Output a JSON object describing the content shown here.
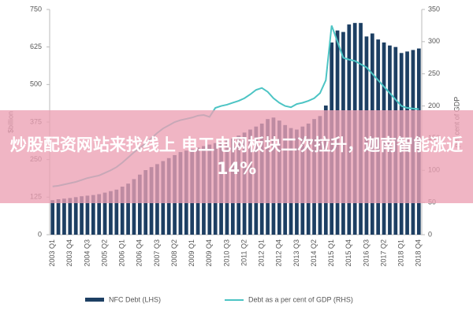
{
  "chart_data": {
    "type": "combo",
    "y_label": "$billion",
    "y2_label": "per cent of GDP",
    "categories": [
      "2003 Q1",
      null,
      null,
      "2003 Q4",
      null,
      null,
      "2004 Q3",
      null,
      null,
      "2005 Q2",
      null,
      null,
      "2006 Q1",
      null,
      null,
      "2006 Q4",
      null,
      null,
      "2007 Q3",
      null,
      null,
      "2008 Q2",
      null,
      null,
      "2009 Q1",
      null,
      null,
      "2009 Q4",
      null,
      null,
      "2010 Q3",
      null,
      null,
      "2011 Q2",
      null,
      null,
      "2012 Q1",
      null,
      null,
      "2012 Q4",
      null,
      null,
      "2013 Q3",
      null,
      null,
      "2014 Q2",
      null,
      null,
      "2015 Q1",
      null,
      null,
      "2015 Q4",
      null,
      null,
      "2016 Q3",
      null,
      null,
      "2017 Q2",
      null,
      null,
      "2018 Q1",
      null,
      null,
      "2018 Q4"
    ],
    "series": [
      {
        "name": "NFC Debt (LHS)",
        "type": "bar",
        "color": "#1d3f63",
        "values": [
          115,
          118,
          120,
          122,
          125,
          128,
          130,
          132,
          135,
          140,
          145,
          150,
          160,
          170,
          185,
          200,
          215,
          225,
          235,
          245,
          255,
          265,
          275,
          280,
          285,
          290,
          295,
          300,
          305,
          310,
          315,
          320,
          330,
          340,
          350,
          360,
          370,
          385,
          390,
          380,
          365,
          355,
          350,
          360,
          370,
          385,
          395,
          430,
          640,
          680,
          675,
          700,
          705,
          705,
          660,
          670,
          650,
          640,
          630,
          625,
          605,
          610,
          615,
          620
        ]
      },
      {
        "name": "Debt as a per cent of GDP (RHS)",
        "type": "line",
        "axis": "y2",
        "color": "#4cc4c4",
        "values": [
          75,
          76,
          78,
          80,
          82,
          85,
          88,
          90,
          92,
          96,
          100,
          105,
          112,
          120,
          128,
          135,
          142,
          150,
          158,
          165,
          170,
          175,
          178,
          180,
          182,
          185,
          186,
          183,
          197,
          200,
          202,
          205,
          208,
          212,
          218,
          225,
          228,
          222,
          212,
          205,
          200,
          198,
          203,
          205,
          208,
          212,
          220,
          240,
          325,
          300,
          275,
          272,
          270,
          265,
          260,
          250,
          240,
          230,
          220,
          210,
          200,
          197,
          196,
          195
        ]
      }
    ],
    "ylim": [
      0,
      750
    ],
    "yticks": [
      0,
      125,
      250,
      375,
      500,
      625,
      750
    ],
    "y2lim": [
      0,
      350
    ],
    "y2ticks": [
      0,
      50,
      100,
      150,
      200,
      250,
      300,
      350
    ],
    "legend": "bottom"
  },
  "overlay_text": "炒股配资网站来找线上 电工电网板块二次拉升，迦南智能涨近14%"
}
